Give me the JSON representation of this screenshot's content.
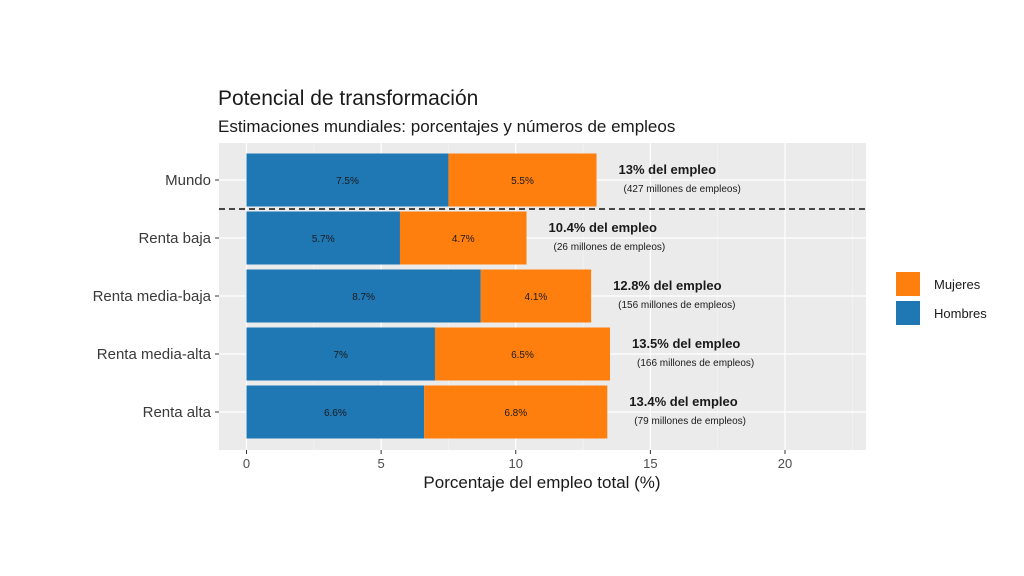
{
  "chart_data": {
    "type": "bar",
    "orientation": "horizontal",
    "stacked": true,
    "title": "Potencial de transformación",
    "subtitle": "Estimaciones mundiales: porcentajes y números de empleos",
    "xlabel": "Porcentaje del empleo total (%)",
    "ylabel": "",
    "xlim": [
      0,
      22.5
    ],
    "xticks": [
      0,
      5,
      10,
      15,
      20
    ],
    "grid": true,
    "categories": [
      "Mundo",
      "Renta baja",
      "Renta media-baja",
      "Renta media-alta",
      "Renta alta"
    ],
    "series": [
      {
        "name": "Hombres",
        "color": "#1f77b4",
        "values": [
          7.5,
          5.7,
          8.7,
          7.0,
          6.6
        ],
        "labels": [
          "7.5%",
          "5.7%",
          "8.7%",
          "7%",
          "6.6%"
        ]
      },
      {
        "name": "Mujeres",
        "color": "#ff7f0e",
        "values": [
          5.5,
          4.7,
          4.1,
          6.5,
          6.8
        ],
        "labels": [
          "5.5%",
          "4.7%",
          "4.1%",
          "6.5%",
          "6.8%"
        ]
      }
    ],
    "annotations": [
      {
        "main": "13% del empleo",
        "sub": "(427 millones de empleos)"
      },
      {
        "main": "10.4% del empleo",
        "sub": "(26 millones de empleos)"
      },
      {
        "main": "12.8% del empleo",
        "sub": "(156 millones de empleos)"
      },
      {
        "main": "13.5% del empleo",
        "sub": "(166 millones de empleos)"
      },
      {
        "main": "13.4% del empleo",
        "sub": "(79 millones de empleos)"
      }
    ],
    "legend": {
      "placement": "right",
      "items": [
        {
          "name": "Mujeres",
          "color": "#ff7f0e"
        },
        {
          "name": "Hombres",
          "color": "#1f77b4"
        }
      ]
    },
    "separator_after_category": "Mundo",
    "panel_background": "#ebebeb"
  }
}
